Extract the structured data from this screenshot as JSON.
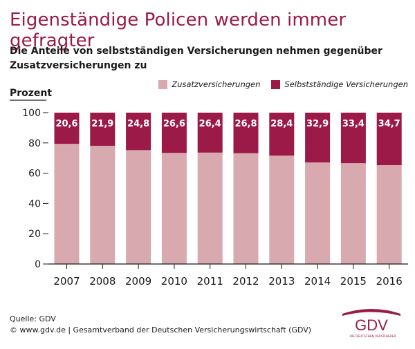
{
  "title": "Eigenständige Policen werden immer gefragter",
  "subtitle": "Die Anteile von selbstständigen Versicherungen nehmen gegenüber Zusatzversicherungen zu",
  "footer": {
    "source": "Quelle: GDV",
    "copyright": "© www.gdv.de | Gesamtverband der Deutschen Versicherungswirtschaft (GDV)"
  },
  "logo": {
    "text": "GDV",
    "tagline": "DIE DEUTSCHEN VERSICHERER"
  },
  "colors": {
    "zusatz": "#d8a9ae",
    "selbst": "#9b1a48",
    "title": "#9b1a48"
  },
  "chart_data": {
    "type": "bar",
    "stacked": true,
    "ylabel": "Prozent",
    "ylim": [
      0,
      100
    ],
    "yticks": [
      0,
      20,
      40,
      60,
      80,
      100
    ],
    "categories": [
      "2007",
      "2008",
      "2009",
      "2010",
      "2011",
      "2012",
      "2013",
      "2014",
      "2015",
      "2016"
    ],
    "series": [
      {
        "name": "Zusatzversicherungen",
        "values": [
          79.4,
          78.1,
          75.2,
          73.4,
          73.6,
          73.2,
          71.6,
          67.1,
          66.6,
          65.3
        ]
      },
      {
        "name": "Selbstständige Versicherungen",
        "values": [
          20.6,
          21.9,
          24.8,
          26.6,
          26.4,
          26.8,
          28.4,
          32.9,
          33.4,
          34.7
        ],
        "labels": [
          "20,6",
          "21,9",
          "24,8",
          "26,6",
          "26,4",
          "26,8",
          "28,4",
          "32,9",
          "33,4",
          "34,7"
        ]
      }
    ],
    "legend_position": "top-right",
    "grid": false
  }
}
